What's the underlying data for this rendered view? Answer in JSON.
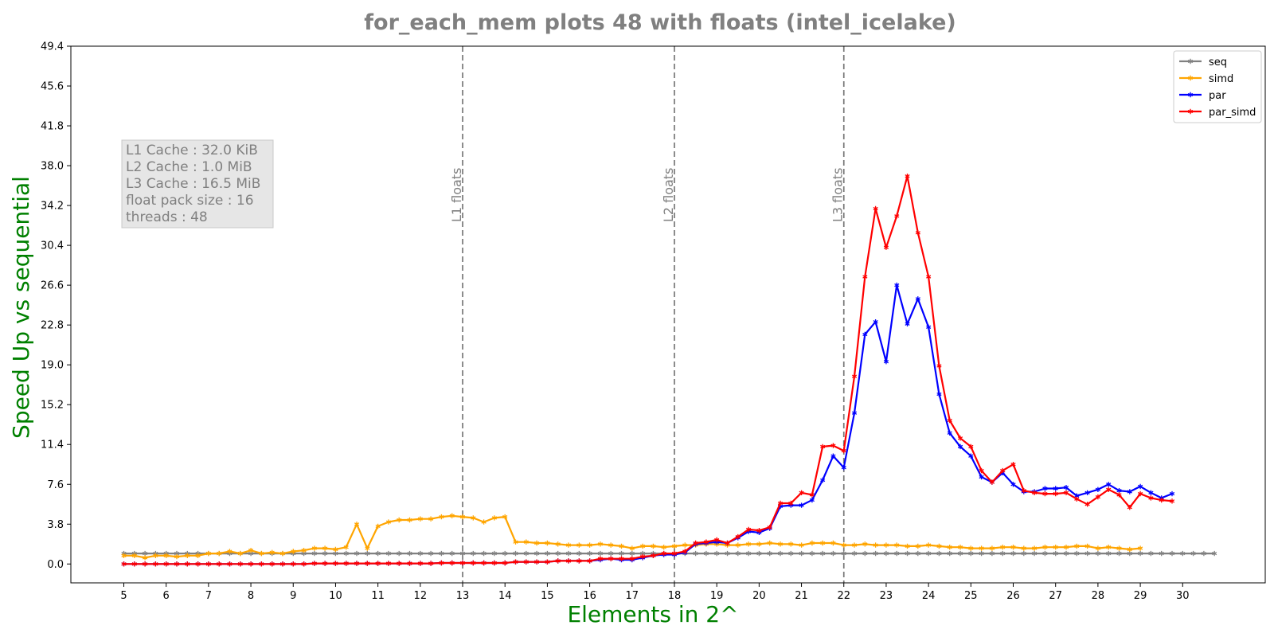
{
  "chart_data": {
    "type": "line",
    "title": "for_each_mem plots 48 with floats  (intel_icelake)",
    "xlabel": "Elements in 2^",
    "ylabel": "Speed Up vs sequential",
    "xlim": [
      3.75,
      31.95
    ],
    "ylim": [
      -1.8,
      49.4
    ],
    "yticks": [
      0.0,
      3.8,
      7.6,
      11.4,
      15.2,
      19.0,
      22.8,
      26.6,
      30.4,
      34.2,
      38.0,
      41.8,
      45.6,
      49.4
    ],
    "ytick_labels": [
      "0.0",
      "3.8",
      "7.6",
      "11.4",
      "15.2",
      "19.0",
      "22.8",
      "26.6",
      "30.4",
      "34.2",
      "38.0",
      "41.8",
      "45.6",
      "49.4"
    ],
    "xticks": [
      5,
      6,
      7,
      8,
      9,
      10,
      11,
      12,
      13,
      14,
      15,
      16,
      17,
      18,
      19,
      20,
      21,
      22,
      23,
      24,
      25,
      26,
      27,
      28,
      29,
      30
    ],
    "xtick_labels": [
      "5",
      "6",
      "7",
      "8",
      "9",
      "10",
      "11",
      "12",
      "13",
      "14",
      "15",
      "16",
      "17",
      "18",
      "19",
      "20",
      "21",
      "22",
      "23",
      "24",
      "25",
      "26",
      "27",
      "28",
      "29",
      "30"
    ],
    "x_step": 0.25,
    "x_start": 5,
    "grid": false,
    "legend_position": "upper right",
    "vlines": [
      {
        "x": 13,
        "label": "L1 floats"
      },
      {
        "x": 18,
        "label": "L2 floats"
      },
      {
        "x": 22,
        "label": "L3 floats"
      }
    ],
    "info_box": [
      "L1 Cache : 32.0 KiB",
      "L2 Cache : 1.0 MiB",
      "L3 Cache : 16.5 MiB",
      "float pack size : 16",
      "threads : 48"
    ],
    "series": [
      {
        "name": "seq",
        "color": "#808080",
        "values": [
          1.0,
          1.0,
          1.0,
          1.0,
          1.0,
          1.0,
          1.0,
          1.0,
          1.0,
          1.0,
          1.0,
          1.0,
          1.0,
          1.0,
          1.0,
          1.0,
          1.0,
          1.0,
          1.0,
          1.0,
          1.0,
          1.0,
          1.0,
          1.0,
          1.0,
          1.0,
          1.0,
          1.0,
          1.0,
          1.0,
          1.0,
          1.0,
          1.0,
          1.0,
          1.0,
          1.0,
          1.0,
          1.0,
          1.0,
          1.0,
          1.0,
          1.0,
          1.0,
          1.0,
          1.0,
          1.0,
          1.0,
          1.0,
          1.0,
          1.0,
          1.0,
          1.0,
          1.0,
          1.0,
          1.0,
          1.0,
          1.0,
          1.0,
          1.0,
          1.0,
          1.0,
          1.0,
          1.0,
          1.0,
          1.0,
          1.0,
          1.0,
          1.0,
          1.0,
          1.0,
          1.0,
          1.0,
          1.0,
          1.0,
          1.0,
          1.0,
          1.0,
          1.0,
          1.0,
          1.0,
          1.0,
          1.0,
          1.0,
          1.0,
          1.0,
          1.0,
          1.0,
          1.0,
          1.0,
          1.0,
          1.0,
          1.0,
          1.0,
          1.0,
          1.0,
          1.0,
          1.0,
          1.0,
          1.0,
          1.0,
          1.0,
          1.0,
          1.0,
          1.0
        ]
      },
      {
        "name": "simd",
        "color": "#ffa500",
        "values": [
          0.8,
          0.8,
          0.6,
          0.8,
          0.8,
          0.7,
          0.8,
          0.8,
          1.0,
          1.0,
          1.2,
          1.0,
          1.3,
          1.0,
          1.1,
          1.0,
          1.2,
          1.3,
          1.5,
          1.5,
          1.4,
          1.6,
          3.8,
          1.5,
          3.6,
          4.0,
          4.2,
          4.2,
          4.3,
          4.3,
          4.5,
          4.6,
          4.5,
          4.4,
          4.0,
          4.4,
          4.5,
          2.1,
          2.1,
          2.0,
          2.0,
          1.9,
          1.8,
          1.8,
          1.8,
          1.9,
          1.8,
          1.7,
          1.5,
          1.7,
          1.7,
          1.6,
          1.7,
          1.8,
          1.8,
          1.9,
          1.9,
          1.8,
          1.8,
          1.9,
          1.9,
          2.0,
          1.9,
          1.9,
          1.8,
          2.0,
          2.0,
          2.0,
          1.8,
          1.8,
          1.9,
          1.8,
          1.8,
          1.8,
          1.7,
          1.7,
          1.8,
          1.7,
          1.6,
          1.6,
          1.5,
          1.5,
          1.5,
          1.6,
          1.6,
          1.5,
          1.5,
          1.6,
          1.6,
          1.6,
          1.7,
          1.7,
          1.5,
          1.6,
          1.5,
          1.4,
          1.5
        ]
      },
      {
        "name": "par",
        "color": "#0000ff",
        "values": [
          0.0,
          0.0,
          0.0,
          0.0,
          0.0,
          0.0,
          0.0,
          0.0,
          0.0,
          0.0,
          0.0,
          0.0,
          0.0,
          0.0,
          0.0,
          0.0,
          0.0,
          0.0,
          0.05,
          0.05,
          0.05,
          0.05,
          0.05,
          0.05,
          0.05,
          0.05,
          0.05,
          0.05,
          0.05,
          0.05,
          0.1,
          0.1,
          0.1,
          0.1,
          0.1,
          0.1,
          0.1,
          0.2,
          0.2,
          0.2,
          0.2,
          0.3,
          0.3,
          0.3,
          0.3,
          0.4,
          0.5,
          0.4,
          0.4,
          0.6,
          0.8,
          0.9,
          0.9,
          1.1,
          1.9,
          2.0,
          2.1,
          2.0,
          2.5,
          3.1,
          3.0,
          3.4,
          5.5,
          5.6,
          5.6,
          6.1,
          8.0,
          10.3,
          9.2,
          14.4,
          21.9,
          23.1,
          19.3,
          26.6,
          22.9,
          25.3,
          22.6,
          16.2,
          12.5,
          11.2,
          10.3,
          8.3,
          7.8,
          8.7,
          7.6,
          6.9,
          6.9,
          7.2,
          7.2,
          7.3,
          6.5,
          6.8,
          7.1,
          7.6,
          7.0,
          6.9,
          7.4,
          6.8,
          6.3,
          6.7
        ]
      },
      {
        "name": "par_simd",
        "color": "#ff0000",
        "values": [
          0.0,
          0.0,
          0.0,
          0.0,
          0.0,
          0.0,
          0.0,
          0.0,
          0.0,
          0.0,
          0.0,
          0.0,
          0.0,
          0.0,
          0.0,
          0.0,
          0.0,
          0.0,
          0.05,
          0.05,
          0.05,
          0.05,
          0.05,
          0.05,
          0.05,
          0.05,
          0.05,
          0.05,
          0.05,
          0.05,
          0.1,
          0.1,
          0.1,
          0.1,
          0.1,
          0.1,
          0.1,
          0.2,
          0.2,
          0.2,
          0.2,
          0.3,
          0.3,
          0.3,
          0.3,
          0.5,
          0.5,
          0.5,
          0.5,
          0.7,
          0.8,
          1.0,
          1.0,
          1.2,
          2.0,
          2.1,
          2.3,
          2.0,
          2.6,
          3.3,
          3.2,
          3.5,
          5.8,
          5.8,
          6.8,
          6.6,
          11.2,
          11.3,
          10.8,
          17.9,
          27.4,
          33.9,
          30.2,
          33.2,
          37.0,
          31.6,
          27.4,
          18.9,
          13.7,
          12.0,
          11.2,
          8.9,
          7.8,
          8.9,
          9.5,
          7.0,
          6.8,
          6.7,
          6.7,
          6.8,
          6.2,
          5.7,
          6.4,
          7.1,
          6.6,
          5.4,
          6.7,
          6.3,
          6.1,
          6.0
        ]
      }
    ]
  }
}
